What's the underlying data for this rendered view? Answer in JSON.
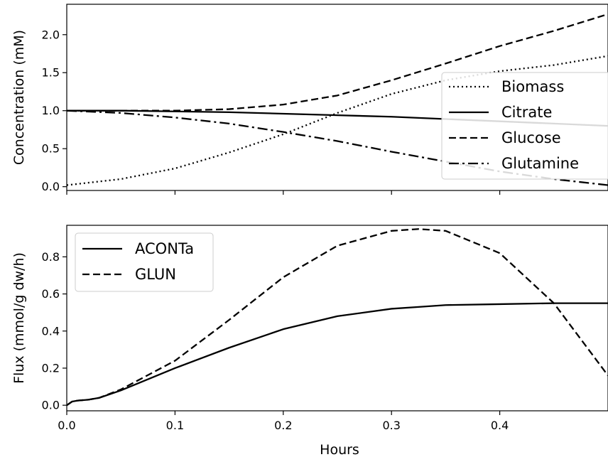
{
  "chart_data": [
    {
      "type": "line",
      "title": "",
      "xlabel": "",
      "ylabel": "Concentration (mM)",
      "xlim": [
        0.0,
        0.5
      ],
      "ylim": [
        -0.05,
        2.4
      ],
      "yticks": [
        0.0,
        0.5,
        1.0,
        1.5,
        2.0
      ],
      "ytick_labels": [
        "0.0",
        "0.5",
        "1.0",
        "1.5",
        "2.0"
      ],
      "xticks": [
        0.0,
        0.1,
        0.2,
        0.3,
        0.4
      ],
      "xtick_labels": [
        "",
        "",
        "",
        "",
        ""
      ],
      "grid": false,
      "legend": "right",
      "x": [
        0.0,
        0.05,
        0.1,
        0.15,
        0.2,
        0.25,
        0.3,
        0.35,
        0.4,
        0.45,
        0.5
      ],
      "series": [
        {
          "name": "Biomass",
          "style": "dotted",
          "values": [
            0.02,
            0.1,
            0.24,
            0.45,
            0.69,
            0.97,
            1.22,
            1.4,
            1.52,
            1.6,
            1.72
          ]
        },
        {
          "name": "Citrate",
          "style": "solid",
          "values": [
            1.0,
            1.0,
            0.99,
            0.98,
            0.96,
            0.94,
            0.92,
            0.89,
            0.86,
            0.83,
            0.8
          ]
        },
        {
          "name": "Glucose",
          "style": "dashed",
          "values": [
            1.0,
            1.0,
            1.0,
            1.02,
            1.08,
            1.2,
            1.4,
            1.62,
            1.85,
            2.05,
            2.27
          ]
        },
        {
          "name": "Glutamine",
          "style": "dashdot",
          "values": [
            1.0,
            0.97,
            0.91,
            0.83,
            0.72,
            0.6,
            0.46,
            0.33,
            0.2,
            0.1,
            0.02
          ]
        }
      ]
    },
    {
      "type": "line",
      "title": "",
      "xlabel": "Hours",
      "ylabel": "Flux (mmol/g dw/h)",
      "xlim": [
        0.0,
        0.5
      ],
      "ylim": [
        -0.03,
        0.97
      ],
      "yticks": [
        0.0,
        0.2,
        0.4,
        0.6,
        0.8
      ],
      "ytick_labels": [
        "0.0",
        "0.2",
        "0.4",
        "0.6",
        "0.8"
      ],
      "xticks": [
        0.0,
        0.1,
        0.2,
        0.3,
        0.4
      ],
      "xtick_labels": [
        "0.0",
        "0.1",
        "0.2",
        "0.3",
        "0.4"
      ],
      "grid": false,
      "legend": "upper-left",
      "x": [
        0.0,
        0.005,
        0.01,
        0.02,
        0.03,
        0.05,
        0.1,
        0.15,
        0.2,
        0.25,
        0.3,
        0.325,
        0.35,
        0.4,
        0.45,
        0.5
      ],
      "series": [
        {
          "name": "ACONTa",
          "style": "solid",
          "values": [
            0.0,
            0.02,
            0.025,
            0.03,
            0.04,
            0.08,
            0.2,
            0.31,
            0.41,
            0.48,
            0.52,
            0.53,
            0.54,
            0.545,
            0.55,
            0.55
          ]
        },
        {
          "name": "GLUN",
          "style": "dashed",
          "values": [
            0.0,
            0.02,
            0.025,
            0.03,
            0.04,
            0.085,
            0.24,
            0.46,
            0.69,
            0.86,
            0.94,
            0.95,
            0.94,
            0.82,
            0.55,
            0.16
          ]
        }
      ]
    }
  ]
}
